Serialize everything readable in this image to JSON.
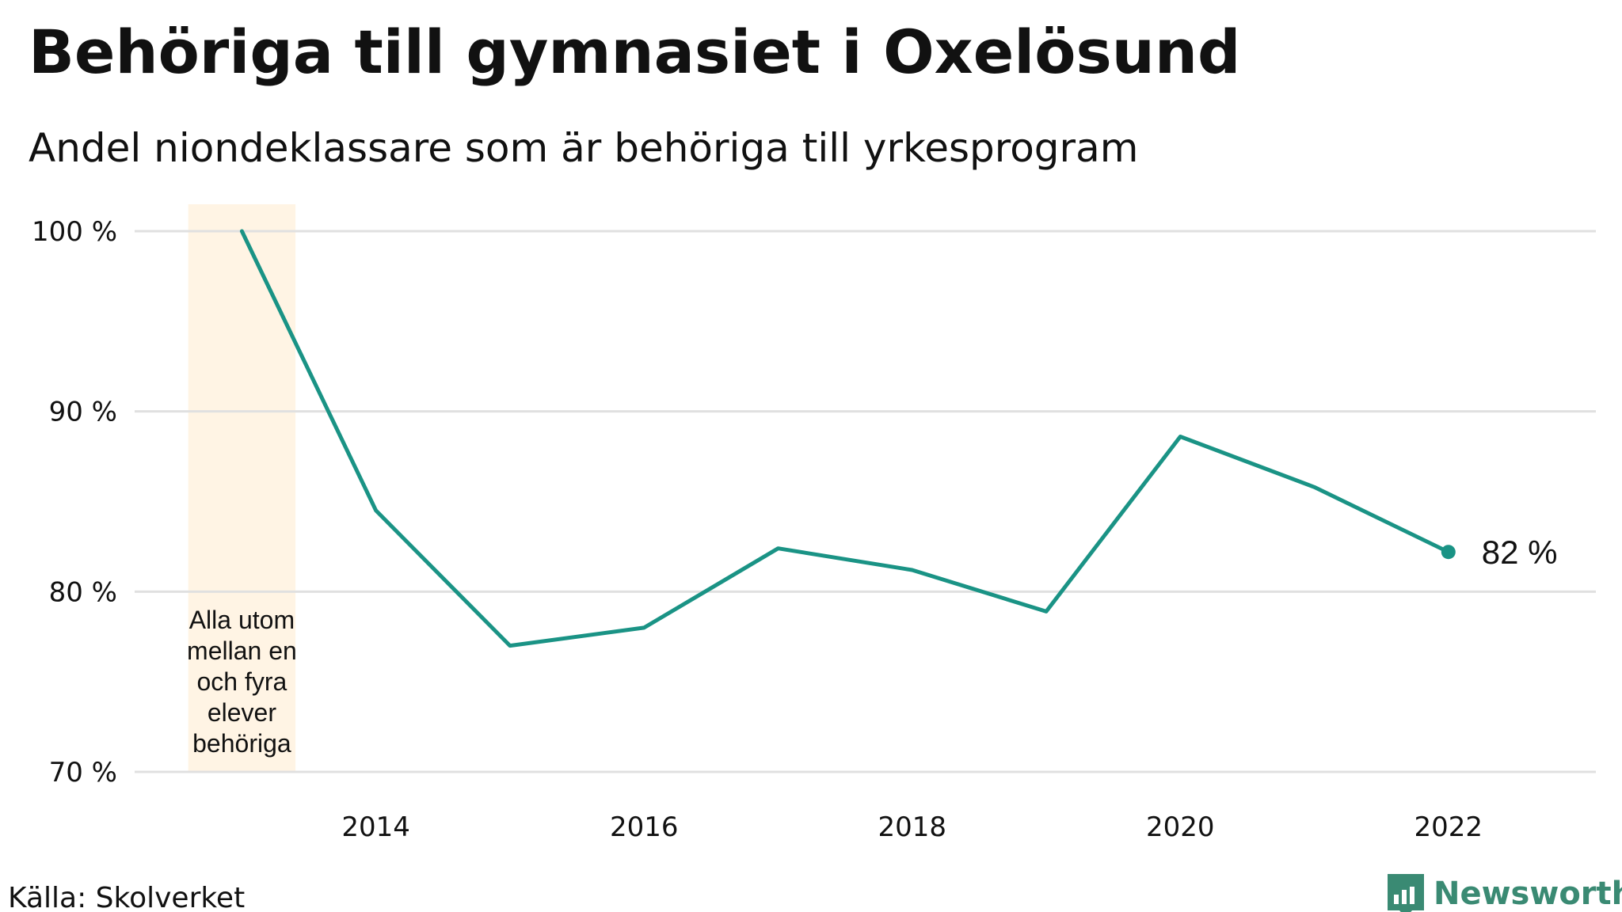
{
  "chart_data": {
    "type": "line",
    "title": "Behöriga till gymnasiet i Oxelösund",
    "subtitle": "Andel niondeklassare som är behöriga till yrkesprogram",
    "xlabel": "",
    "ylabel": "",
    "x": [
      2013,
      2014,
      2015,
      2016,
      2017,
      2018,
      2019,
      2020,
      2021,
      2022
    ],
    "values": [
      100,
      84.5,
      77,
      78,
      82.4,
      81.2,
      78.9,
      88.6,
      85.8,
      82.2
    ],
    "xlim": [
      2012.2,
      2023.1
    ],
    "ylim": [
      70,
      100
    ],
    "x_ticks": [
      2014,
      2016,
      2018,
      2020,
      2022
    ],
    "y_ticks": [
      {
        "value": 70,
        "label": "70 %"
      },
      {
        "value": 80,
        "label": "80 %"
      },
      {
        "value": 90,
        "label": "90 %"
      },
      {
        "value": 100,
        "label": "100 %"
      }
    ],
    "grid": true,
    "line_color": "#1a9385",
    "highlight": {
      "x_start": 2012.6,
      "x_end": 2013.4,
      "color": "#fff4e4",
      "note_lines": [
        "Alla utom",
        "mellan en",
        "och fyra",
        "elever",
        "behöriga"
      ]
    },
    "end_label": "82  %",
    "source": "Källa: Skolverket",
    "brand": "Newsworthy",
    "brand_color": "#3a8a73"
  }
}
